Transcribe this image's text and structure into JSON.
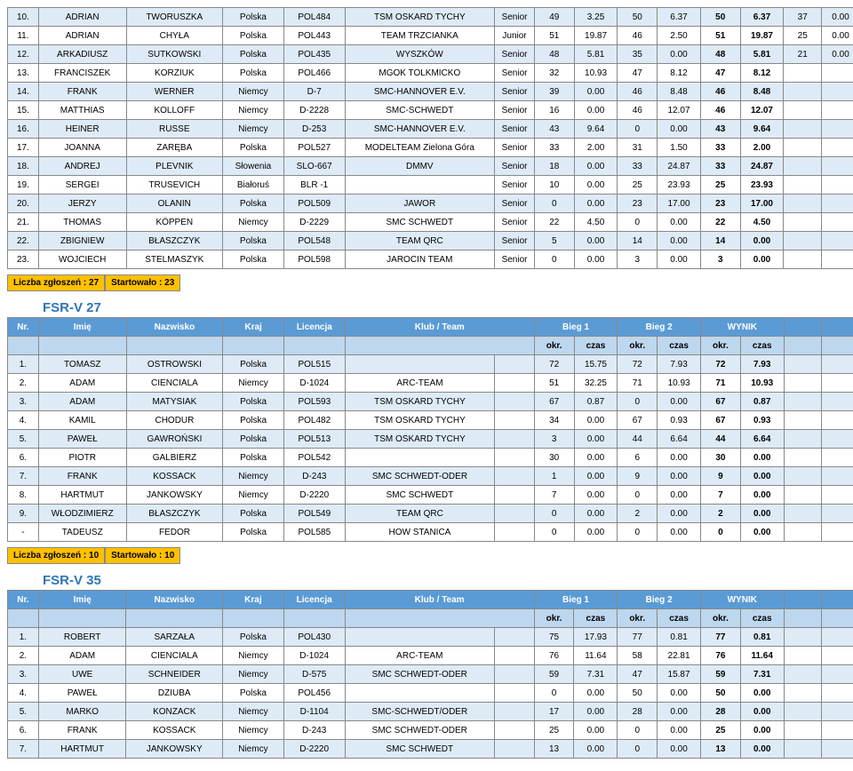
{
  "colors": {
    "header_bg": "#5b9bd5",
    "subheader_bg": "#bdd7ee",
    "row_alt_bg": "#deebf7",
    "footer_bg": "#ffc000"
  },
  "header": {
    "nr": "Nr.",
    "imie": "Imię",
    "nazwisko": "Nazwisko",
    "kraj": "Kraj",
    "licencja": "Licencja",
    "klub": "Klub / Team",
    "bieg1": "Bieg 1",
    "bieg2": "Bieg 2",
    "wynik": "WYNIK",
    "okr": "okr.",
    "czas": "czas"
  },
  "tables": [
    {
      "title": "",
      "rows": [
        [
          "10.",
          "ADRIAN",
          "TWORUSZKA",
          "Polska",
          "POL484",
          "TSM OSKARD TYCHY",
          "Senior",
          "49",
          "3.25",
          "50",
          "6.37",
          "50",
          "6.37",
          "37",
          "0.00"
        ],
        [
          "11.",
          "ADRIAN",
          "CHYŁA",
          "Polska",
          "POL443",
          "TEAM TRZCIANKA",
          "Junior",
          "51",
          "19.87",
          "46",
          "2.50",
          "51",
          "19.87",
          "25",
          "0.00"
        ],
        [
          "12.",
          "ARKADIUSZ",
          "SUTKOWSKI",
          "Polska",
          "POL435",
          "WYSZKÓW",
          "Senior",
          "48",
          "5.81",
          "35",
          "0.00",
          "48",
          "5.81",
          "21",
          "0.00"
        ],
        [
          "13.",
          "FRANCISZEK",
          "KORZIUK",
          "Polska",
          "POL466",
          "MGOK TOLKMICKO",
          "Senior",
          "32",
          "10.93",
          "47",
          "8.12",
          "47",
          "8.12",
          "",
          ""
        ],
        [
          "14.",
          "FRANK",
          "WERNER",
          "Niemcy",
          "D-7",
          "SMC-HANNOVER E.V.",
          "Senior",
          "39",
          "0.00",
          "46",
          "8.48",
          "46",
          "8.48",
          "",
          ""
        ],
        [
          "15.",
          "MATTHIAS",
          "KOLLOFF",
          "Niemcy",
          "D-2228",
          "SMC-SCHWEDT",
          "Senior",
          "16",
          "0.00",
          "46",
          "12.07",
          "46",
          "12.07",
          "",
          ""
        ],
        [
          "16.",
          "HEINER",
          "RUSSE",
          "Niemcy",
          "D-253",
          "SMC-HANNOVER E.V.",
          "Senior",
          "43",
          "9.64",
          "0",
          "0.00",
          "43",
          "9.64",
          "",
          ""
        ],
        [
          "17.",
          "JOANNA",
          "ZARĘBA",
          "Polska",
          "POL527",
          "MODELTEAM Zielona Góra",
          "Senior",
          "33",
          "2.00",
          "31",
          "1.50",
          "33",
          "2.00",
          "",
          ""
        ],
        [
          "18.",
          "ANDREJ",
          "PLEVNIK",
          "Słowenia",
          "SLO-667",
          "DMMV",
          "Senior",
          "18",
          "0.00",
          "33",
          "24.87",
          "33",
          "24.87",
          "",
          ""
        ],
        [
          "19.",
          "SERGEI",
          "TRUSEVICH",
          "Białoruś",
          "BLR -1",
          "",
          "Senior",
          "10",
          "0.00",
          "25",
          "23.93",
          "25",
          "23.93",
          "",
          ""
        ],
        [
          "20.",
          "JERZY",
          "OLANIN",
          "Polska",
          "POL509",
          "JAWOR",
          "Senior",
          "0",
          "0.00",
          "23",
          "17.00",
          "23",
          "17.00",
          "",
          ""
        ],
        [
          "21.",
          "THOMAS",
          "KÖPPEN",
          "Niemcy",
          "D-2229",
          "SMC SCHWEDT",
          "Senior",
          "22",
          "4.50",
          "0",
          "0.00",
          "22",
          "4.50",
          "",
          ""
        ],
        [
          "22.",
          "ZBIGNIEW",
          "BŁASZCZYK",
          "Polska",
          "POL548",
          "TEAM QRC",
          "Senior",
          "5",
          "0.00",
          "14",
          "0.00",
          "14",
          "0.00",
          "",
          ""
        ],
        [
          "23.",
          "WOJCIECH",
          "STELMASZYK",
          "Polska",
          "POL598",
          "JAROCIN TEAM",
          "Senior",
          "0",
          "0.00",
          "3",
          "0.00",
          "3",
          "0.00",
          "",
          ""
        ]
      ],
      "footer": [
        "Liczba zgłoszeń : 27",
        "Startowało : 23"
      ]
    },
    {
      "title": "FSR-V 27",
      "rows": [
        [
          "1.",
          "TOMASZ",
          "OSTROWSKI",
          "Polska",
          "POL515",
          "",
          "",
          "72",
          "15.75",
          "72",
          "7.93",
          "72",
          "7.93",
          "",
          ""
        ],
        [
          "2.",
          "ADAM",
          "CIENCIALA",
          "Niemcy",
          "D-1024",
          "ARC-TEAM",
          "",
          "51",
          "32.25",
          "71",
          "10.93",
          "71",
          "10.93",
          "",
          ""
        ],
        [
          "3.",
          "ADAM",
          "MATYSIAK",
          "Polska",
          "POL593",
          "TSM OSKARD TYCHY",
          "",
          "67",
          "0.87",
          "0",
          "0.00",
          "67",
          "0.87",
          "",
          ""
        ],
        [
          "4.",
          "KAMIL",
          "CHODUR",
          "Polska",
          "POL482",
          "TSM OSKARD TYCHY",
          "",
          "34",
          "0.00",
          "67",
          "0.93",
          "67",
          "0.93",
          "",
          ""
        ],
        [
          "5.",
          "PAWEŁ",
          "GAWROŃSKI",
          "Polska",
          "POL513",
          "TSM OSKARD TYCHY",
          "",
          "3",
          "0.00",
          "44",
          "6.64",
          "44",
          "6.64",
          "",
          ""
        ],
        [
          "6.",
          "PIOTR",
          "GALBIERZ",
          "Polska",
          "POL542",
          "",
          "",
          "30",
          "0.00",
          "6",
          "0.00",
          "30",
          "0.00",
          "",
          ""
        ],
        [
          "7.",
          "FRANK",
          "KOSSACK",
          "Niemcy",
          "D-243",
          "SMC SCHWEDT-ODER",
          "",
          "1",
          "0.00",
          "9",
          "0.00",
          "9",
          "0.00",
          "",
          ""
        ],
        [
          "8.",
          "HARTMUT",
          "JANKOWSKY",
          "Niemcy",
          "D-2220",
          "SMC SCHWEDT",
          "",
          "7",
          "0.00",
          "0",
          "0.00",
          "7",
          "0.00",
          "",
          ""
        ],
        [
          "9.",
          "WŁODZIMIERZ",
          "BŁASZCZYK",
          "Polska",
          "POL549",
          "TEAM QRC",
          "",
          "0",
          "0.00",
          "2",
          "0.00",
          "2",
          "0.00",
          "",
          ""
        ],
        [
          "-",
          "TADEUSZ",
          "FEDOR",
          "Polska",
          "POL585",
          "HOW STANICA",
          "",
          "0",
          "0.00",
          "0",
          "0.00",
          "0",
          "0.00",
          "",
          ""
        ]
      ],
      "footer": [
        "Liczba zgłoszeń : 10",
        "Startowało : 10"
      ]
    },
    {
      "title": "FSR-V 35",
      "rows": [
        [
          "1.",
          "ROBERT",
          "SARZAŁA",
          "Polska",
          "POL430",
          "",
          "",
          "75",
          "17.93",
          "77",
          "0.81",
          "77",
          "0.81",
          "",
          ""
        ],
        [
          "2.",
          "ADAM",
          "CIENCIALA",
          "Niemcy",
          "D-1024",
          "ARC-TEAM",
          "",
          "76",
          "11.64",
          "58",
          "22.81",
          "76",
          "11.64",
          "",
          ""
        ],
        [
          "3.",
          "UWE",
          "SCHNEIDER",
          "Niemcy",
          "D-575",
          "SMC SCHWEDT-ODER",
          "",
          "59",
          "7.31",
          "47",
          "15.87",
          "59",
          "7.31",
          "",
          ""
        ],
        [
          "4.",
          "PAWEŁ",
          "DZIUBA",
          "Polska",
          "POL456",
          "",
          "",
          "0",
          "0.00",
          "50",
          "0.00",
          "50",
          "0.00",
          "",
          ""
        ],
        [
          "5.",
          "MARKO",
          "KONZACK",
          "Niemcy",
          "D-1104",
          "SMC-SCHWEDT/ODER",
          "",
          "17",
          "0.00",
          "28",
          "0.00",
          "28",
          "0.00",
          "",
          ""
        ],
        [
          "6.",
          "FRANK",
          "KOSSACK",
          "Niemcy",
          "D-243",
          "SMC SCHWEDT-ODER",
          "",
          "25",
          "0.00",
          "0",
          "0.00",
          "25",
          "0.00",
          "",
          ""
        ],
        [
          "7.",
          "HARTMUT",
          "JANKOWSKY",
          "Niemcy",
          "D-2220",
          "SMC SCHWEDT",
          "",
          "13",
          "0.00",
          "0",
          "0.00",
          "13",
          "0.00",
          "",
          ""
        ]
      ],
      "footer": null
    }
  ]
}
